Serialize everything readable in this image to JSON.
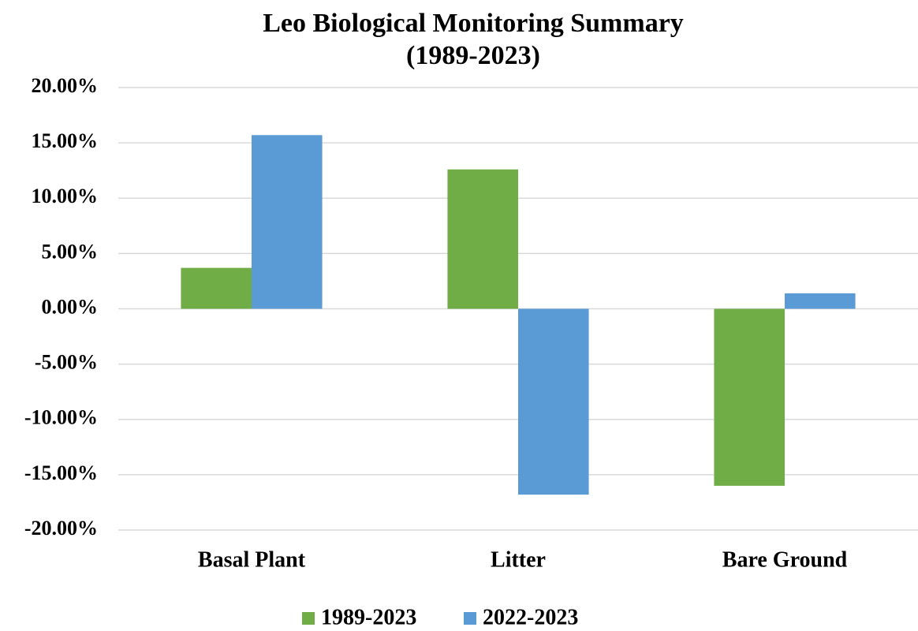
{
  "chart_data": {
    "type": "bar",
    "title": "Leo Biological Monitoring Summary",
    "subtitle": "(1989-2023)",
    "categories": [
      "Basal Plant",
      "Litter",
      "Bare Ground"
    ],
    "series": [
      {
        "name": "1989-2023",
        "color": "#70ad47",
        "values": [
          3.7,
          12.6,
          -16.0
        ]
      },
      {
        "name": "2022-2023",
        "color": "#5b9bd5",
        "values": [
          15.7,
          -16.8,
          1.4
        ]
      }
    ],
    "ylim": [
      -20,
      20
    ],
    "yticks": [
      {
        "value": -20,
        "label": "-20.00%"
      },
      {
        "value": -15,
        "label": "-15.00%"
      },
      {
        "value": -10,
        "label": "-10.00%"
      },
      {
        "value": -5,
        "label": "-5.00%"
      },
      {
        "value": 0,
        "label": "0.00%"
      },
      {
        "value": 5,
        "label": "5.00%"
      },
      {
        "value": 10,
        "label": "10.00%"
      },
      {
        "value": 15,
        "label": "15.00%"
      },
      {
        "value": 20,
        "label": "20.00%"
      }
    ],
    "grid": true,
    "legend": "bottom"
  }
}
